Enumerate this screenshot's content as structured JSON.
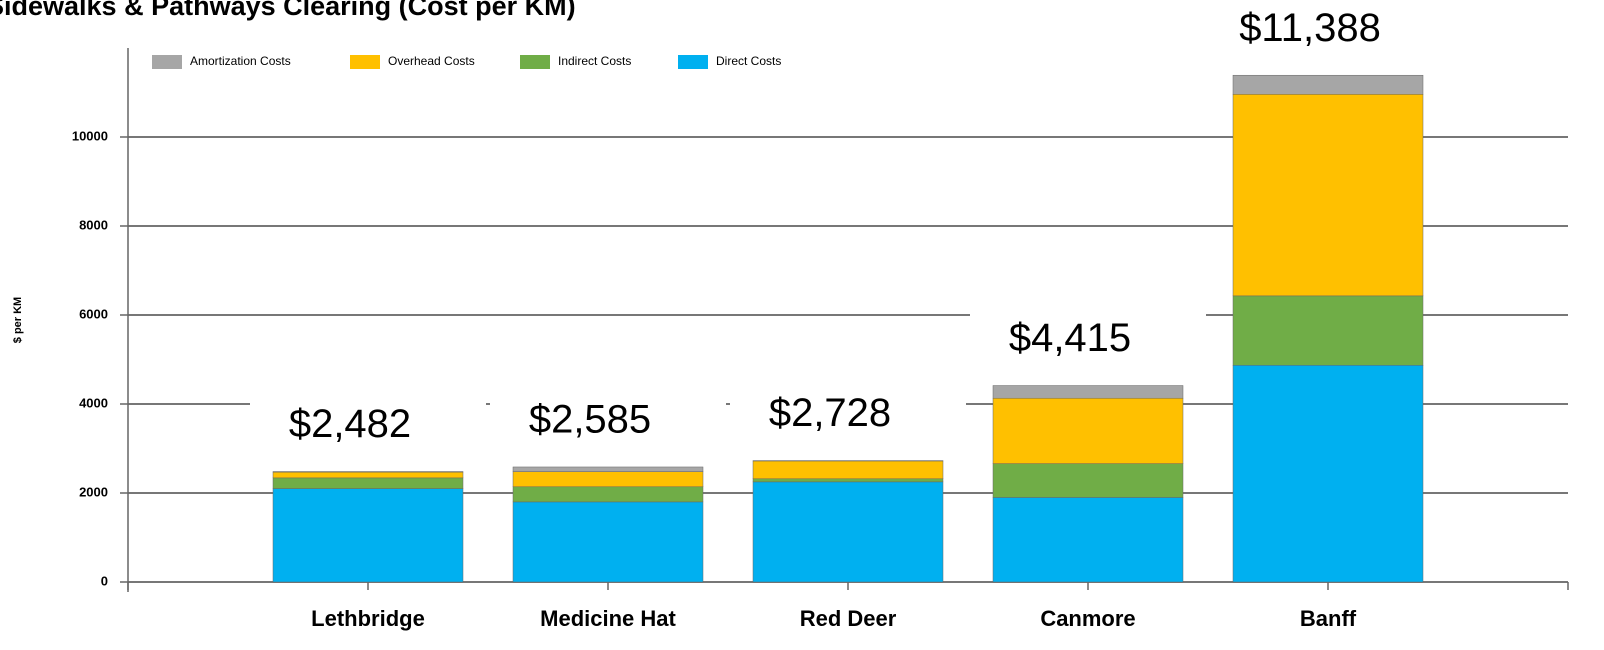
{
  "chart_data": {
    "type": "stacked_bar",
    "title": "Sidewalks & Pathways Clearing (Cost per KM)",
    "y_label": "$ per KM",
    "categories": [
      "Lethbridge",
      "Medicine Hat",
      "Red Deer",
      "Canmore",
      "Banff"
    ],
    "series": [
      {
        "name": "Direct Costs",
        "color": "#00b0f0",
        "values": [
          2100,
          1800,
          2250,
          1900,
          4870
        ]
      },
      {
        "name": "Indirect Costs",
        "color": "#70ad47",
        "values": [
          240,
          340,
          70,
          760,
          1560
        ]
      },
      {
        "name": "Overhead Costs",
        "color": "#ffc000",
        "values": [
          130,
          340,
          400,
          1470,
          4530
        ]
      },
      {
        "name": "Amortization Costs",
        "color": "#a6a6a6",
        "values": [
          12,
          105,
          8,
          285,
          428
        ]
      }
    ],
    "totals": {
      "values": [
        2482,
        2585,
        2728,
        4415,
        11388
      ],
      "value_labels": [
        "$2,482",
        "$2,585",
        "$2,728",
        "$4,415",
        "$11,388"
      ]
    },
    "ylim": [
      0,
      12000
    ],
    "yticks": [
      0,
      2000,
      4000,
      6000,
      8000,
      10000
    ],
    "grid": true,
    "legend": "top-left"
  }
}
